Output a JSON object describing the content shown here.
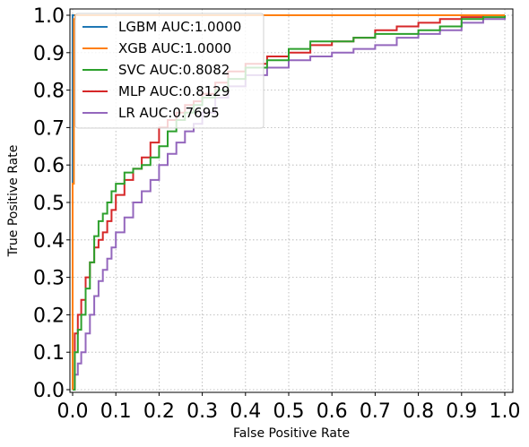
{
  "chart_data": {
    "type": "line",
    "title": "",
    "xlabel": "False Positive Rate",
    "ylabel": "True Positive Rate",
    "xlim": [
      0.0,
      1.0
    ],
    "ylim": [
      0.0,
      1.0
    ],
    "grid": true,
    "legend_position": "top-left",
    "xticks": [
      "0.0",
      "0.1",
      "0.2",
      "0.3",
      "0.4",
      "0.5",
      "0.6",
      "0.7",
      "0.8",
      "0.9",
      "1.0"
    ],
    "yticks": [
      "0.0",
      "0.1",
      "0.2",
      "0.3",
      "0.4",
      "0.5",
      "0.6",
      "0.7",
      "0.8",
      "0.9",
      "1.0"
    ],
    "series": [
      {
        "name": "LGBM AUC:1.0000",
        "color": "#1f77b4",
        "x": [
          0.0,
          0.0,
          1.0
        ],
        "y": [
          0.0,
          1.0,
          1.0
        ]
      },
      {
        "name": "XGB AUC:1.0000",
        "color": "#ff7f0e",
        "x": [
          0.0,
          0.0,
          0.003,
          0.003,
          0.006,
          0.006,
          1.0
        ],
        "y": [
          0.0,
          0.55,
          0.55,
          0.99,
          0.99,
          1.0,
          1.0
        ]
      },
      {
        "name": "SVC AUC:0.8082",
        "color": "#2ca02c",
        "x": [
          0.0,
          0.005,
          0.012,
          0.02,
          0.03,
          0.04,
          0.05,
          0.06,
          0.07,
          0.08,
          0.09,
          0.1,
          0.12,
          0.14,
          0.16,
          0.18,
          0.2,
          0.22,
          0.24,
          0.26,
          0.28,
          0.3,
          0.33,
          0.36,
          0.4,
          0.45,
          0.5,
          0.55,
          0.6,
          0.65,
          0.7,
          0.75,
          0.8,
          0.85,
          0.9,
          0.95,
          1.0
        ],
        "y": [
          0.0,
          0.1,
          0.16,
          0.2,
          0.27,
          0.34,
          0.41,
          0.45,
          0.47,
          0.5,
          0.53,
          0.55,
          0.58,
          0.59,
          0.6,
          0.62,
          0.65,
          0.69,
          0.72,
          0.74,
          0.76,
          0.78,
          0.8,
          0.83,
          0.86,
          0.88,
          0.91,
          0.93,
          0.93,
          0.94,
          0.95,
          0.95,
          0.96,
          0.97,
          0.99,
          0.995,
          1.0
        ]
      },
      {
        "name": "MLP AUC:0.8129",
        "color": "#d62728",
        "x": [
          0.0,
          0.005,
          0.012,
          0.02,
          0.03,
          0.04,
          0.05,
          0.06,
          0.07,
          0.08,
          0.09,
          0.1,
          0.12,
          0.14,
          0.16,
          0.18,
          0.2,
          0.22,
          0.24,
          0.26,
          0.28,
          0.3,
          0.33,
          0.36,
          0.4,
          0.45,
          0.5,
          0.55,
          0.6,
          0.65,
          0.7,
          0.75,
          0.8,
          0.85,
          0.9,
          0.95,
          1.0
        ],
        "y": [
          0.0,
          0.15,
          0.2,
          0.24,
          0.3,
          0.34,
          0.38,
          0.4,
          0.42,
          0.45,
          0.48,
          0.52,
          0.56,
          0.59,
          0.62,
          0.66,
          0.7,
          0.72,
          0.74,
          0.76,
          0.77,
          0.79,
          0.82,
          0.85,
          0.87,
          0.89,
          0.9,
          0.92,
          0.93,
          0.94,
          0.96,
          0.97,
          0.98,
          0.99,
          0.995,
          1.0,
          1.0
        ]
      },
      {
        "name": "LR AUC:0.7695",
        "color": "#9467bd",
        "x": [
          0.0,
          0.005,
          0.012,
          0.02,
          0.03,
          0.04,
          0.05,
          0.06,
          0.07,
          0.08,
          0.09,
          0.1,
          0.12,
          0.14,
          0.16,
          0.18,
          0.2,
          0.22,
          0.24,
          0.26,
          0.28,
          0.3,
          0.33,
          0.36,
          0.4,
          0.45,
          0.5,
          0.55,
          0.6,
          0.65,
          0.7,
          0.75,
          0.8,
          0.85,
          0.9,
          0.95,
          1.0
        ],
        "y": [
          0.0,
          0.04,
          0.07,
          0.1,
          0.15,
          0.2,
          0.25,
          0.29,
          0.32,
          0.35,
          0.38,
          0.42,
          0.46,
          0.5,
          0.53,
          0.56,
          0.6,
          0.63,
          0.66,
          0.69,
          0.71,
          0.74,
          0.78,
          0.81,
          0.84,
          0.86,
          0.88,
          0.89,
          0.9,
          0.91,
          0.92,
          0.94,
          0.95,
          0.96,
          0.98,
          0.99,
          1.0
        ]
      }
    ]
  }
}
